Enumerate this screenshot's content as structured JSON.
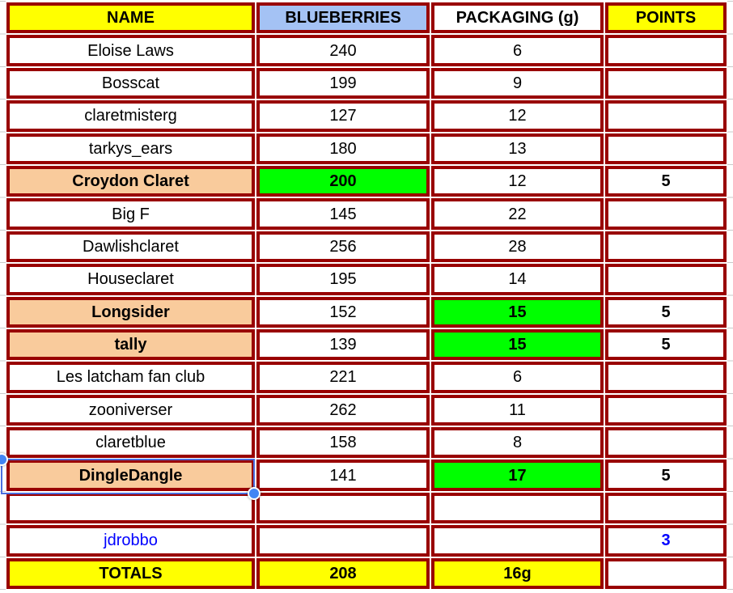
{
  "colors": {
    "border": "#990000",
    "yellow": "#FFFF00",
    "green": "#00FF00",
    "orange": "#F9CB9C",
    "header_blue": "#A4C2F4",
    "white": "#FFFFFF",
    "blue_text": "#0000FF",
    "selection_blue": "#4A6EE0",
    "handle_blue": "#4285F4",
    "gridline_gray": "#C9C9C9"
  },
  "table": {
    "columns": [
      {
        "key": "name",
        "label": "NAME",
        "header_bg": "yellow"
      },
      {
        "key": "blueberries",
        "label": "BLUEBERRIES",
        "header_bg": "header_blue"
      },
      {
        "key": "packaging",
        "label": "PACKAGING (g)",
        "header_bg": "white"
      },
      {
        "key": "points",
        "label": "POINTS",
        "header_bg": "yellow"
      }
    ],
    "rows": [
      {
        "cells": [
          {
            "text": "Eloise Laws"
          },
          {
            "text": "240"
          },
          {
            "text": "6"
          },
          {
            "text": ""
          }
        ]
      },
      {
        "cells": [
          {
            "text": "Bosscat"
          },
          {
            "text": "199"
          },
          {
            "text": "9"
          },
          {
            "text": ""
          }
        ]
      },
      {
        "cells": [
          {
            "text": "claretmisterg"
          },
          {
            "text": "127"
          },
          {
            "text": "12"
          },
          {
            "text": ""
          }
        ]
      },
      {
        "cells": [
          {
            "text": "tarkys_ears"
          },
          {
            "text": "180"
          },
          {
            "text": "13"
          },
          {
            "text": ""
          }
        ]
      },
      {
        "cells": [
          {
            "text": "Croydon Claret",
            "bg": "orange",
            "bold": true
          },
          {
            "text": "200",
            "bg": "green",
            "bold": true
          },
          {
            "text": "12"
          },
          {
            "text": "5",
            "bold": true
          }
        ]
      },
      {
        "cells": [
          {
            "text": "Big F"
          },
          {
            "text": "145"
          },
          {
            "text": "22"
          },
          {
            "text": ""
          }
        ]
      },
      {
        "cells": [
          {
            "text": "Dawlishclaret"
          },
          {
            "text": "256"
          },
          {
            "text": "28"
          },
          {
            "text": ""
          }
        ]
      },
      {
        "cells": [
          {
            "text": "Houseclaret"
          },
          {
            "text": "195"
          },
          {
            "text": "14"
          },
          {
            "text": ""
          }
        ]
      },
      {
        "cells": [
          {
            "text": "Longsider",
            "bg": "orange",
            "bold": true
          },
          {
            "text": "152"
          },
          {
            "text": "15",
            "bg": "green",
            "bold": true
          },
          {
            "text": "5",
            "bold": true
          }
        ]
      },
      {
        "cells": [
          {
            "text": "tally",
            "bg": "orange",
            "bold": true
          },
          {
            "text": "139"
          },
          {
            "text": "15",
            "bg": "green",
            "bold": true
          },
          {
            "text": "5",
            "bold": true
          }
        ]
      },
      {
        "cells": [
          {
            "text": "Les latcham fan club"
          },
          {
            "text": "221"
          },
          {
            "text": "6"
          },
          {
            "text": ""
          }
        ]
      },
      {
        "cells": [
          {
            "text": "zooniverser"
          },
          {
            "text": "262"
          },
          {
            "text": "11"
          },
          {
            "text": ""
          }
        ]
      },
      {
        "cells": [
          {
            "text": "claretblue"
          },
          {
            "text": "158"
          },
          {
            "text": "8"
          },
          {
            "text": ""
          }
        ]
      },
      {
        "cells": [
          {
            "text": "DingleDangle",
            "bg": "orange",
            "bold": true,
            "selected": true
          },
          {
            "text": "141"
          },
          {
            "text": "17",
            "bg": "green",
            "bold": true
          },
          {
            "text": "5",
            "bold": true
          }
        ]
      },
      {
        "cells": [
          {
            "text": ""
          },
          {
            "text": ""
          },
          {
            "text": ""
          },
          {
            "text": ""
          }
        ]
      },
      {
        "cells": [
          {
            "text": "jdrobbo",
            "color": "blue_text"
          },
          {
            "text": ""
          },
          {
            "text": ""
          },
          {
            "text": "3",
            "color": "blue_text",
            "bold": true
          }
        ]
      },
      {
        "cells": [
          {
            "text": "TOTALS",
            "bg": "yellow",
            "bold": true
          },
          {
            "text": "208",
            "bg": "yellow",
            "bold": true
          },
          {
            "text": "16g",
            "bg": "yellow",
            "bold": true
          },
          {
            "text": ""
          }
        ]
      }
    ]
  },
  "selection": {
    "selected_cell": "DingleDangle",
    "handles": [
      "top-left",
      "bottom-right"
    ]
  }
}
